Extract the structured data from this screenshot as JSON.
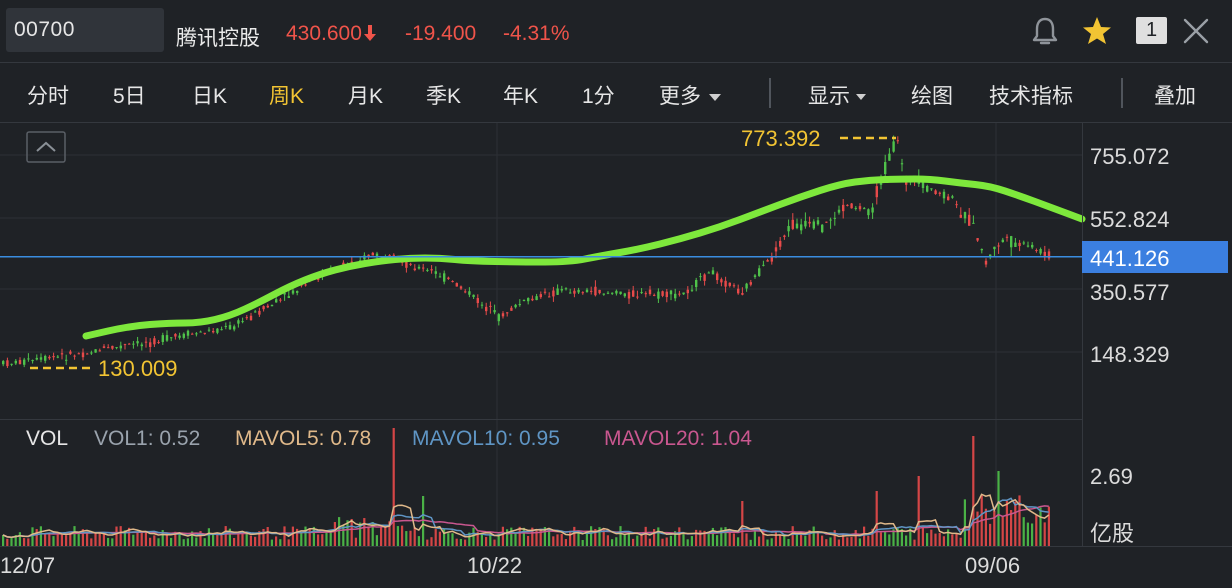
{
  "header": {
    "code": "00700",
    "name": "腾讯控股",
    "price": "430.600",
    "change": "-19.400",
    "change_pct": "-4.31%",
    "badge": "1",
    "down_color": "#f0544a"
  },
  "toolbar": {
    "items": [
      "分时",
      "5日",
      "日K",
      "周K",
      "月K",
      "季K",
      "年K",
      "1分",
      "更多",
      "显示",
      "绘图",
      "技术指标",
      "叠加"
    ],
    "active": "周K",
    "active_color": "#f2c433"
  },
  "icons": [
    "bell-icon",
    "star-icon",
    "close-icon",
    "collapse-icon"
  ],
  "chart_data": [
    {
      "type": "candlestick",
      "y_axis_labels": [
        "755.072",
        "552.824",
        "441.126",
        "350.577",
        "148.329"
      ],
      "y_scale": "log",
      "current_price_marker": "441.126",
      "max_label": "773.392",
      "min_label": "130.009",
      "x_tick_labels": [
        "12/07",
        "10/22",
        "09/06"
      ],
      "ma_line_color": "#7ee83c",
      "up_color": "#4fc24a",
      "down_color": "#e84a4a",
      "grid": true
    },
    {
      "type": "bar",
      "title": "VOL",
      "legend": [
        {
          "name": "VOL1",
          "value": "0.52",
          "color": "#9aa3ad"
        },
        {
          "name": "MAVOL5",
          "value": "0.78",
          "color": "#e0b98a"
        },
        {
          "name": "MAVOL10",
          "value": "0.95",
          "color": "#5f95c4"
        },
        {
          "name": "MAVOL20",
          "value": "1.04",
          "color": "#c9578f"
        }
      ],
      "y_axis_labels": [
        "2.69"
      ],
      "unit_label": "亿股"
    }
  ]
}
